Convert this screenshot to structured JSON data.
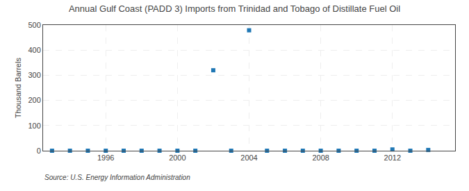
{
  "chart_data": {
    "type": "scatter",
    "title": "Annual Gulf Coast (PADD 3) Imports from Trinidad and Tobago of Distillate Fuel Oil",
    "ylabel": "Thousand Barrels",
    "annotations": [
      "Source: U.S. Energy Information Administration"
    ],
    "x": [
      1993,
      1994,
      1995,
      1996,
      1997,
      1998,
      1999,
      2000,
      2001,
      2002,
      2003,
      2004,
      2005,
      2006,
      2007,
      2008,
      2009,
      2010,
      2011,
      2012,
      2013,
      2014
    ],
    "values": [
      0,
      0,
      0,
      0,
      0,
      0,
      0,
      0,
      0,
      320,
      0,
      479,
      0,
      0,
      0,
      0,
      0,
      0,
      0,
      5,
      0,
      3
    ],
    "marker": "square",
    "xlim": [
      1992.5,
      2015.5
    ],
    "xticks": [
      1996,
      2000,
      2004,
      2008,
      2012
    ],
    "ylim": [
      0,
      500
    ],
    "yticks": [
      0,
      100,
      200,
      300,
      400,
      500
    ],
    "grid": true
  }
}
